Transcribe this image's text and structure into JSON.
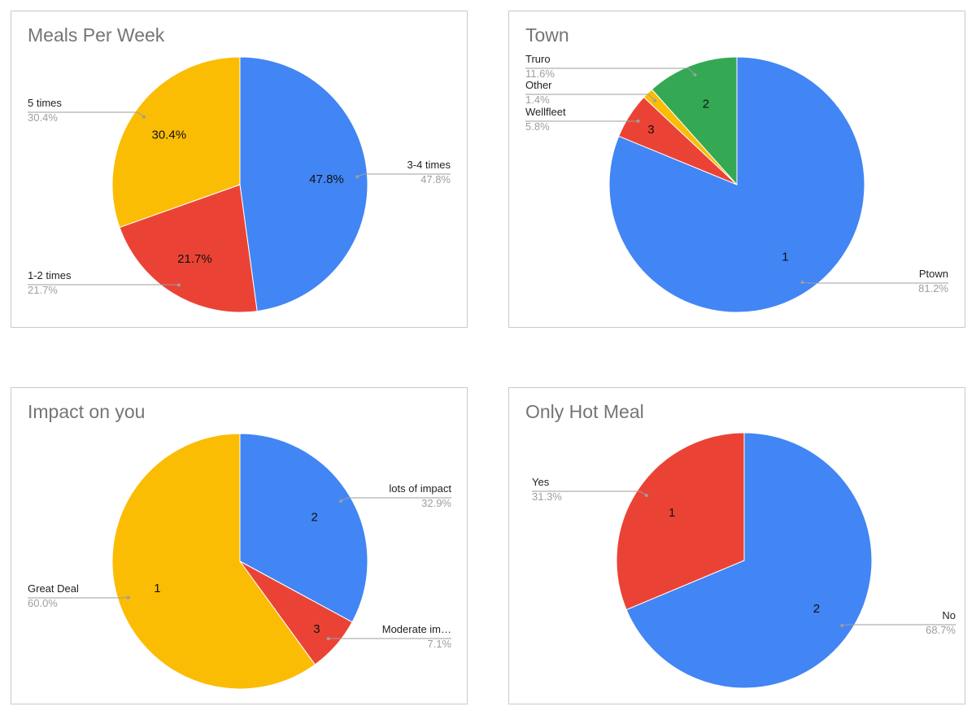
{
  "chart_data": [
    {
      "type": "pie",
      "title": "Meals Per Week",
      "slices": [
        {
          "label": "3-4 times",
          "value": 47.8,
          "pct": "47.8%",
          "slice_label": "47.8%",
          "color": "#4285f4"
        },
        {
          "label": "1-2 times",
          "value": 21.7,
          "pct": "21.7%",
          "slice_label": "21.7%",
          "color": "#ea4335"
        },
        {
          "label": "5 times",
          "value": 30.4,
          "pct": "30.4%",
          "slice_label": "30.4%",
          "color": "#fbbc04"
        }
      ]
    },
    {
      "type": "pie",
      "title": "Town",
      "slices": [
        {
          "label": "Ptown",
          "value": 81.2,
          "pct": "81.2%",
          "slice_label": "1",
          "color": "#4285f4"
        },
        {
          "label": "Wellfleet",
          "value": 5.8,
          "pct": "5.8%",
          "slice_label": "3",
          "color": "#ea4335"
        },
        {
          "label": "Other",
          "value": 1.4,
          "pct": "1.4%",
          "slice_label": "",
          "color": "#fbbc04"
        },
        {
          "label": "Truro",
          "value": 11.6,
          "pct": "11.6%",
          "slice_label": "2",
          "color": "#34a853"
        }
      ]
    },
    {
      "type": "pie",
      "title": "Impact on you",
      "slices": [
        {
          "label": "lots of impact",
          "value": 32.9,
          "pct": "32.9%",
          "slice_label": "2",
          "color": "#4285f4"
        },
        {
          "label": "Moderate im…",
          "value": 7.1,
          "pct": "7.1%",
          "slice_label": "3",
          "color": "#ea4335"
        },
        {
          "label": "Great Deal",
          "value": 60.0,
          "pct": "60.0%",
          "slice_label": "1",
          "color": "#fbbc04"
        }
      ]
    },
    {
      "type": "pie",
      "title": "Only Hot Meal",
      "slices": [
        {
          "label": "No",
          "value": 68.7,
          "pct": "68.7%",
          "slice_label": "2",
          "color": "#4285f4"
        },
        {
          "label": "Yes",
          "value": 31.3,
          "pct": "31.3%",
          "slice_label": "1",
          "color": "#ea4335"
        }
      ]
    }
  ]
}
